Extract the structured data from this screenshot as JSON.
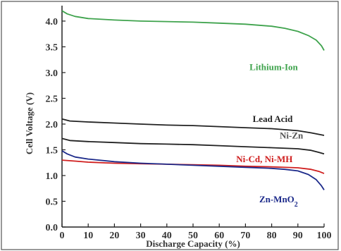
{
  "chart_data": {
    "type": "line",
    "title": "",
    "xlabel": "Discharge Capacity (%)",
    "ylabel": "Cell Voltage (V)",
    "xlim": [
      0,
      100
    ],
    "ylim": [
      0,
      4.3
    ],
    "xticks": [
      "0",
      "10",
      "20",
      "30",
      "40",
      "50",
      "60",
      "70",
      "80",
      "90",
      "100"
    ],
    "yticks": [
      "0.0",
      "0.5",
      "1.0",
      "1.5",
      "2.0",
      "2.5",
      "3.0",
      "3.5",
      "4.0"
    ],
    "grid": false,
    "legend": "inline labels",
    "series": [
      {
        "name": "Lithium-Ion",
        "color": "#3fa34d",
        "x": [
          0,
          2,
          5,
          10,
          20,
          30,
          40,
          50,
          60,
          70,
          80,
          85,
          90,
          94,
          97,
          99,
          100
        ],
        "y": [
          4.2,
          4.14,
          4.09,
          4.05,
          4.02,
          4.0,
          3.99,
          3.98,
          3.96,
          3.94,
          3.9,
          3.86,
          3.8,
          3.72,
          3.63,
          3.52,
          3.43
        ]
      },
      {
        "name": "Lead Acid",
        "color": "#222222",
        "x": [
          0,
          3,
          10,
          20,
          30,
          40,
          50,
          60,
          70,
          80,
          90,
          95,
          100
        ],
        "y": [
          2.1,
          2.06,
          2.04,
          2.02,
          2.0,
          1.98,
          1.97,
          1.95,
          1.93,
          1.91,
          1.87,
          1.83,
          1.78
        ]
      },
      {
        "name": "Ni-Zn",
        "color": "#222222",
        "x": [
          0,
          3,
          10,
          20,
          30,
          40,
          50,
          60,
          70,
          80,
          90,
          95,
          98,
          100
        ],
        "y": [
          1.72,
          1.68,
          1.66,
          1.64,
          1.62,
          1.61,
          1.6,
          1.58,
          1.56,
          1.54,
          1.52,
          1.49,
          1.45,
          1.42
        ]
      },
      {
        "name": "Ni-Cd, Ni-MH",
        "color": "#d01f1f",
        "x": [
          0,
          5,
          10,
          20,
          30,
          40,
          50,
          60,
          70,
          80,
          90,
          95,
          98,
          100
        ],
        "y": [
          1.3,
          1.28,
          1.26,
          1.24,
          1.23,
          1.22,
          1.21,
          1.2,
          1.18,
          1.17,
          1.15,
          1.12,
          1.08,
          1.04
        ]
      },
      {
        "name": "Zn-MnO2",
        "color": "#1c2a8a",
        "x": [
          0,
          2,
          5,
          10,
          20,
          30,
          40,
          50,
          60,
          70,
          80,
          85,
          90,
          94,
          97,
          99,
          100
        ],
        "y": [
          1.48,
          1.42,
          1.36,
          1.32,
          1.27,
          1.24,
          1.22,
          1.2,
          1.18,
          1.16,
          1.14,
          1.12,
          1.09,
          1.02,
          0.92,
          0.8,
          0.72
        ]
      }
    ]
  },
  "labels": [
    {
      "series": 0,
      "text": "Lithium-Ion",
      "color": "#3fa34d",
      "at": [
        90,
        3.05
      ]
    },
    {
      "series": 1,
      "text": "Lead Acid",
      "color": "#222222",
      "at": [
        88,
        2.04
      ]
    },
    {
      "series": 2,
      "text": "Ni-Zn",
      "color": "#555555",
      "at": [
        92,
        1.72
      ]
    },
    {
      "series": 3,
      "text": "Ni-Cd, Ni-MH",
      "color": "#d01f1f",
      "at": [
        88,
        1.26
      ]
    },
    {
      "series": 4,
      "text": "Zn-MnO2",
      "color": "#1c2a8a",
      "at": [
        90,
        0.48
      ]
    }
  ]
}
